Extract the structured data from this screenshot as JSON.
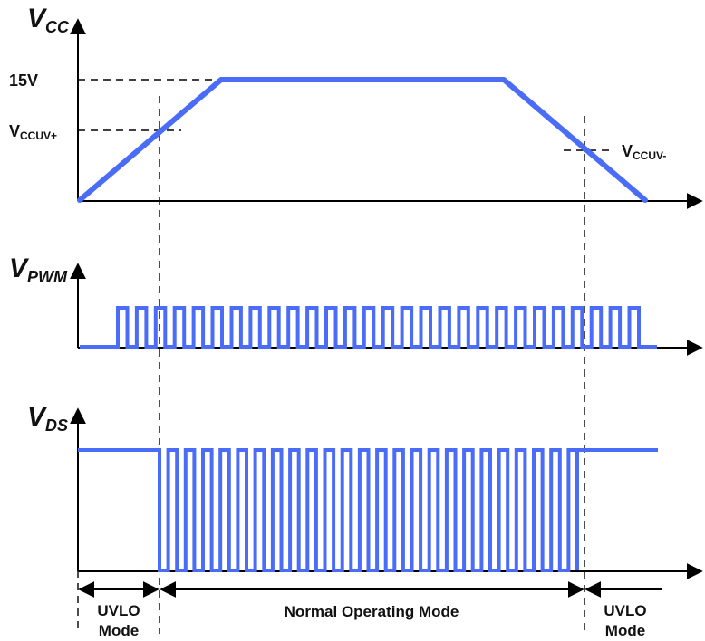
{
  "waveforms": {
    "vcc": {
      "axis_main": "V",
      "axis_sub": "CC"
    },
    "vpwm": {
      "axis_main": "V",
      "axis_sub": "PWM"
    },
    "vds": {
      "axis_main": "V",
      "axis_sub": "DS"
    }
  },
  "levels": {
    "v15": "15V",
    "vccuv_plus_main": "V",
    "vccuv_plus_sub": "CCUV+",
    "vccuv_minus_main": "V",
    "vccuv_minus_sub": "CCUV-"
  },
  "modes": {
    "uvlo_left_line1": "UVLO",
    "uvlo_left_line2": "Mode",
    "normal": "Normal Operating Mode",
    "uvlo_right_line1": "UVLO",
    "uvlo_right_line2": "Mode"
  },
  "colors": {
    "waveform": "#4a6cf7",
    "axes": "#000000"
  }
}
